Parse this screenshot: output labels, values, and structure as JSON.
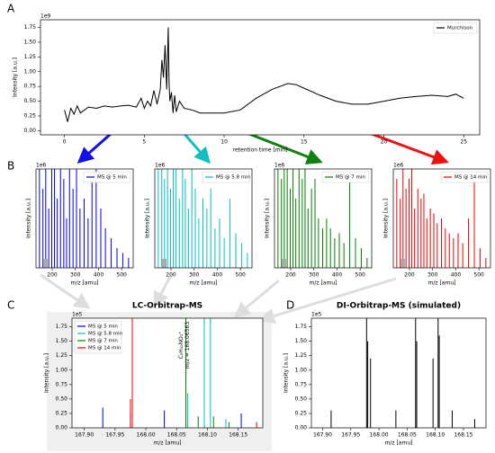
{
  "chart_data": [
    {
      "type": "line",
      "panel": "A",
      "offset": "1e9",
      "xlabel": "retention time [min]",
      "ylabel": "Intensity [a.u.]",
      "xlim": [
        -1.5,
        26
      ],
      "ylim": [
        -0.07,
        1.88
      ],
      "xticks": [
        0,
        5,
        10,
        15,
        20,
        25
      ],
      "yticks": [
        {
          "value": 0,
          "label": "0.00"
        },
        0.25,
        {
          "value": 0.5,
          "label": "0.50"
        },
        0.75,
        {
          "value": 1,
          "label": "1.00"
        },
        1.25,
        {
          "value": 1.5,
          "label": "1.50"
        },
        1.75
      ],
      "legend": "upper right",
      "series": [
        {
          "name": "Murchison",
          "color": "#000000",
          "x": [
            0,
            0.2,
            0.4,
            0.6,
            0.8,
            1.0,
            1.5,
            2,
            2.5,
            3,
            3.5,
            4,
            4.5,
            4.8,
            5.0,
            5.2,
            5.4,
            5.6,
            5.8,
            6.0,
            6.1,
            6.2,
            6.3,
            6.4,
            6.5,
            6.55,
            6.6,
            6.7,
            6.8,
            6.9,
            7.0,
            7.2,
            7.5,
            8,
            8.5,
            9,
            10,
            11,
            12,
            13,
            14,
            14.5,
            15,
            16,
            17,
            18,
            19,
            20,
            21,
            22,
            23,
            24,
            24.5,
            25
          ],
          "values": [
            0.35,
            0.15,
            0.38,
            0.28,
            0.42,
            0.3,
            0.4,
            0.38,
            0.42,
            0.4,
            0.42,
            0.43,
            0.4,
            0.55,
            0.38,
            0.5,
            0.42,
            0.68,
            0.45,
            0.7,
            1.2,
            0.9,
            1.45,
            0.7,
            1.75,
            0.8,
            0.5,
            0.65,
            0.3,
            0.6,
            0.32,
            0.5,
            0.38,
            0.35,
            0.3,
            0.3,
            0.3,
            0.35,
            0.55,
            0.7,
            0.8,
            0.78,
            0.72,
            0.6,
            0.5,
            0.45,
            0.45,
            0.5,
            0.55,
            0.58,
            0.6,
            0.58,
            0.62,
            0.55
          ]
        }
      ]
    },
    {
      "type": "stem",
      "panel": "B",
      "offset": "1e6",
      "xlabel": "m/z [amu]",
      "ylabel": "Intensity [a.u.]",
      "xlim": [
        130,
        550
      ],
      "ylim": [
        0,
        1
      ],
      "xticks": [
        200,
        300,
        400,
        500
      ],
      "legend": "upper right",
      "series": [
        {
          "name": "MS @ 5 min",
          "color": "#0000ee",
          "x": [
            145,
            160,
            172,
            185,
            198,
            210,
            222,
            236,
            250,
            262,
            275,
            290,
            305,
            320,
            338,
            355,
            372,
            390,
            410,
            430,
            455,
            480,
            505,
            530
          ],
          "values": [
            1,
            0.8,
            1,
            0.6,
            1,
            1,
            0.7,
            1,
            0.9,
            0.5,
            1,
            0.8,
            1,
            0.6,
            0.7,
            0.5,
            0.9,
            1,
            0.6,
            0.4,
            0.3,
            0.2,
            0.15,
            0.1
          ]
        }
      ]
    },
    {
      "type": "stem",
      "offset": "1e6",
      "xlabel": "m/z [amu]",
      "ylabel": "Intensity [a.u.]",
      "xlim": [
        130,
        550
      ],
      "ylim": [
        0,
        1
      ],
      "xticks": [
        200,
        300,
        400,
        500
      ],
      "legend": "upper right",
      "series": [
        {
          "name": "MS @ 5.8 min",
          "color": "#00bfbf",
          "x": [
            145,
            160,
            172,
            185,
            198,
            210,
            222,
            236,
            250,
            262,
            275,
            290,
            305,
            320,
            338,
            355,
            372,
            390,
            410,
            430,
            455,
            480,
            505,
            530
          ],
          "values": [
            1,
            1,
            0.9,
            1,
            0.8,
            1,
            1,
            0.7,
            1,
            0.9,
            0.6,
            1,
            0.8,
            0.5,
            0.7,
            0.6,
            0.8,
            0.4,
            0.5,
            0.3,
            0.7,
            0.35,
            0.25,
            0.15
          ]
        }
      ]
    },
    {
      "type": "stem",
      "offset": "1e6",
      "xlabel": "m/z [amu]",
      "ylabel": "Intensity [a.u.]",
      "xlim": [
        130,
        550
      ],
      "ylim": [
        0,
        1
      ],
      "xticks": [
        200,
        300,
        400,
        500
      ],
      "legend": "upper right",
      "series": [
        {
          "name": "MS @ 7 min",
          "color": "#008000",
          "x": [
            145,
            160,
            172,
            185,
            198,
            210,
            222,
            236,
            250,
            262,
            275,
            290,
            305,
            320,
            338,
            355,
            372,
            390,
            410,
            430,
            455,
            480,
            505,
            530
          ],
          "values": [
            1,
            0.9,
            1,
            1,
            0.8,
            1,
            0.7,
            1,
            0.9,
            1,
            0.6,
            0.8,
            0.9,
            0.5,
            0.4,
            0.5,
            0.4,
            0.3,
            0.35,
            0.25,
            0.95,
            0.3,
            0.2,
            0.1
          ]
        }
      ]
    },
    {
      "type": "stem",
      "offset": "1e6",
      "xlabel": "m/z [amu]",
      "ylabel": "Intensity [a.u.]",
      "xlim": [
        130,
        550
      ],
      "ylim": [
        0,
        1
      ],
      "xticks": [
        200,
        300,
        400,
        500
      ],
      "legend": "upper right",
      "series": [
        {
          "name": "MS @ 14 min",
          "color": "#ee0000",
          "x": [
            145,
            160,
            172,
            185,
            198,
            210,
            222,
            236,
            250,
            262,
            275,
            290,
            305,
            320,
            338,
            355,
            372,
            390,
            410,
            430,
            455,
            480,
            505,
            530
          ],
          "values": [
            0.9,
            0.7,
            1,
            0.8,
            0.9,
            1,
            0.6,
            0.8,
            0.7,
            0.75,
            0.5,
            0.6,
            0.55,
            0.45,
            0.5,
            0.4,
            0.35,
            0.3,
            0.35,
            0.25,
            0.5,
            0.9,
            0.2,
            0.1
          ]
        }
      ]
    },
    {
      "type": "stem",
      "panel": "C",
      "title": "LC-Orbitrap-MS",
      "offset": "1e5",
      "xlabel": "m/z [amu]",
      "ylabel": "Intensity [a.u.]",
      "xlim": [
        167.88,
        168.19
      ],
      "ylim": [
        0,
        1.9
      ],
      "xticks": [
        {
          "value": 167.9,
          "label": "167.90"
        },
        167.95,
        {
          "value": 168,
          "label": "168.00"
        },
        168.05,
        {
          "value": 168.1,
          "label": "168.10"
        },
        168.15
      ],
      "yticks": [
        {
          "value": 0,
          "label": "0.00"
        },
        0.25,
        {
          "value": 0.5,
          "label": "0.50"
        },
        0.75,
        {
          "value": 1,
          "label": "1.00"
        },
        1.25,
        {
          "value": 1.5,
          "label": "1.50"
        },
        1.75
      ],
      "legend": "upper left",
      "annotation": [
        "C₉H₁₀NO₂⁺",
        "m/z = 168.06563"
      ],
      "series": [
        {
          "name": "MS @ 5 min",
          "color": "#0000ee",
          "x": [
            167.93,
            167.975,
            168.03,
            168.155
          ],
          "values": [
            0.35,
            0.25,
            0.3,
            0.25
          ]
        },
        {
          "name": "MS @ 5.8 min",
          "color": "#00bfbf",
          "x": [
            168.068,
            168.095,
            168.105,
            168.13
          ],
          "values": [
            0.6,
            1.9,
            1.9,
            0.15
          ]
        },
        {
          "name": "MS @ 7 min",
          "color": "#008000",
          "x": [
            168.065,
            168.085,
            168.11,
            168.135
          ],
          "values": [
            1.9,
            0.2,
            0.2,
            0.1
          ]
        },
        {
          "name": "MS @ 14 min",
          "color": "#ee0000",
          "x": [
            167.975,
            167.978,
            168.18
          ],
          "values": [
            0.5,
            1.9,
            0.1
          ]
        }
      ]
    },
    {
      "type": "stem",
      "panel": "D",
      "title": "DI-Orbitrap-MS (simulated)",
      "offset": "1e5",
      "xlabel": "m/z [amu]",
      "ylabel": "Intensity [a.u.]",
      "xlim": [
        167.88,
        168.19
      ],
      "ylim": [
        0,
        1.9
      ],
      "xticks": [
        {
          "value": 167.9,
          "label": "167.90"
        },
        167.95,
        {
          "value": 168,
          "label": "168.00"
        },
        168.05,
        {
          "value": 168.1,
          "label": "168.10"
        },
        168.15
      ],
      "yticks": [
        {
          "value": 0,
          "label": "0.00"
        },
        0.25,
        {
          "value": 0.5,
          "label": "0.50"
        },
        0.75,
        {
          "value": 1,
          "label": "1.00"
        },
        1.25,
        {
          "value": 1.5,
          "label": "1.50"
        },
        1.75
      ],
      "series": [
        {
          "color": "#000000",
          "x": [
            167.915,
            167.978,
            167.98,
            167.985,
            168.03,
            168.065,
            168.067,
            168.096,
            168.105,
            168.107,
            168.13,
            168.17
          ],
          "values": [
            0.3,
            1.9,
            1.5,
            1.2,
            0.3,
            1.9,
            1.5,
            1.2,
            1.9,
            1.6,
            0.3,
            0.15
          ]
        }
      ]
    }
  ]
}
